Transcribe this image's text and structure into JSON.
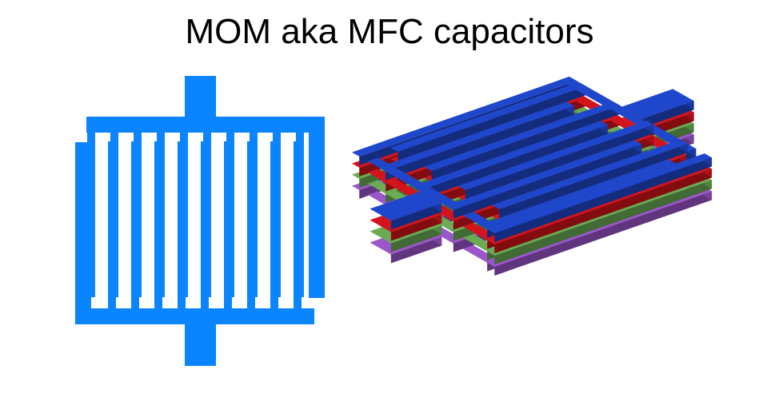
{
  "title": "MOM aka MFC capacitors",
  "colors": {
    "background": "#ffffff",
    "title_text": "#000000",
    "plan_metal": "#0a84ff",
    "layer_blue": "#1f47cc",
    "layer_red": "#d4141c",
    "layer_green": "#6aab54",
    "layer_purple": "#9c56cc"
  },
  "figures": [
    {
      "view": "top-view",
      "icon": "interdigitated-comb-fingers"
    },
    {
      "view": "isometric-3d-view",
      "icon": "stacked-metal-finger-layers",
      "layers": [
        "blue",
        "red",
        "green",
        "purple"
      ]
    }
  ]
}
